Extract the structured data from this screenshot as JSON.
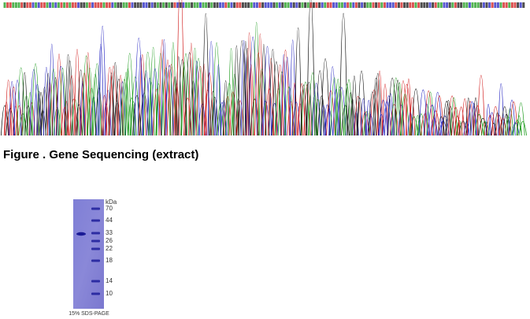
{
  "figure": {
    "title": "Figure . Gene Sequencing (extract)"
  },
  "gel": {
    "unit": "kDa",
    "markers": [
      70,
      44,
      33,
      26,
      22,
      18,
      14,
      10
    ],
    "caption": "15% SDS-PAGE"
  }
}
